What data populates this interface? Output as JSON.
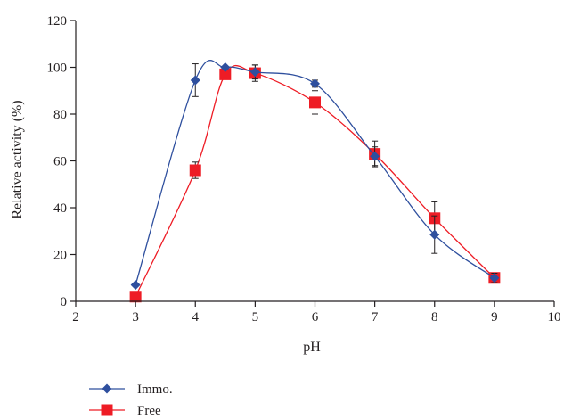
{
  "chart_data": {
    "type": "line",
    "title": "",
    "xlabel": "pH",
    "ylabel": "Relative activity (%)",
    "xlim": [
      2,
      10
    ],
    "ylim": [
      0,
      120
    ],
    "x_ticks": [
      "2",
      "3",
      "4",
      "5",
      "6",
      "7",
      "8",
      "9",
      "10"
    ],
    "y_ticks": [
      "0",
      "20",
      "40",
      "60",
      "80",
      "100",
      "120"
    ],
    "grid": false,
    "legend_position": "bottom-left",
    "series": [
      {
        "name": "Immo.",
        "color": "#2e4f9e",
        "marker": "diamond",
        "points": [
          {
            "x": 3,
            "y": 7,
            "err": 0
          },
          {
            "x": 4,
            "y": 94.5,
            "err": 7
          },
          {
            "x": 4.5,
            "y": 100,
            "err": 0
          },
          {
            "x": 5,
            "y": 98,
            "err": 3
          },
          {
            "x": 6,
            "y": 93,
            "err": 1.5
          },
          {
            "x": 7,
            "y": 62,
            "err": 4
          },
          {
            "x": 8,
            "y": 28.5,
            "err": 8
          },
          {
            "x": 9,
            "y": 10,
            "err": 2
          }
        ]
      },
      {
        "name": "Free",
        "color": "#ee1c25",
        "marker": "square",
        "points": [
          {
            "x": 3,
            "y": 2,
            "err": 0
          },
          {
            "x": 4,
            "y": 56,
            "err": 3.5
          },
          {
            "x": 4.5,
            "y": 97,
            "err": 2
          },
          {
            "x": 5,
            "y": 97.5,
            "err": 3.5
          },
          {
            "x": 6,
            "y": 85,
            "err": 5
          },
          {
            "x": 7,
            "y": 63,
            "err": 5.5
          },
          {
            "x": 8,
            "y": 35.5,
            "err": 7
          },
          {
            "x": 9,
            "y": 10,
            "err": 2
          }
        ]
      }
    ]
  }
}
